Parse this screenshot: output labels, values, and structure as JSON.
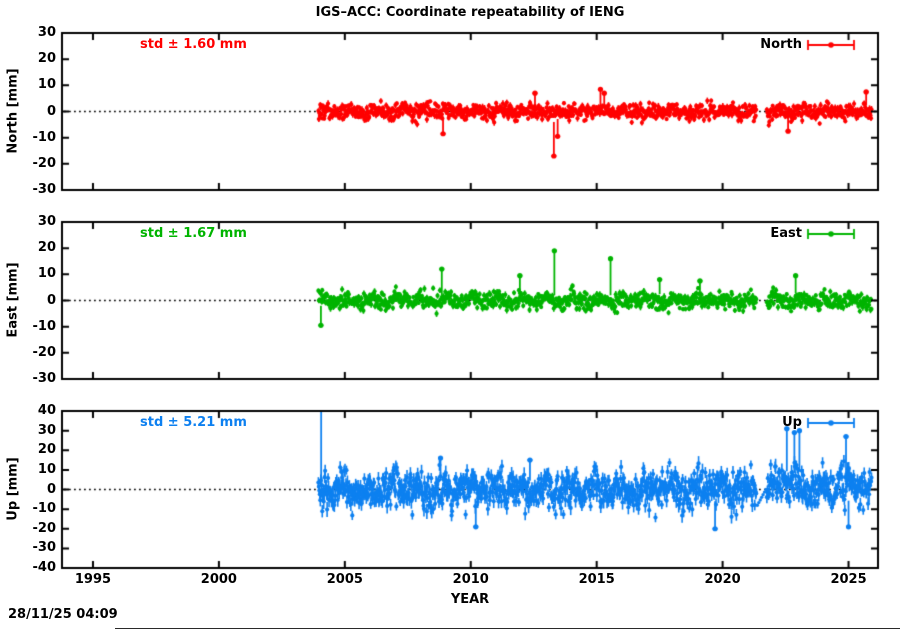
{
  "page": {
    "timestamp": "28/11/25 04:09",
    "background": "#ffffff",
    "axis_color": "#000000"
  },
  "chart_data": {
    "type": "scatter",
    "title": "IGS–ACC: Coordinate repeatability of IENG",
    "xlabel": "YEAR",
    "x_ticks": [
      1995,
      2000,
      2005,
      2010,
      2015,
      2020,
      2025
    ],
    "x_range": [
      1993.77,
      2026.17
    ],
    "data_start": 2003.95,
    "data_end": 2025.92,
    "data_gap": [
      2021.35,
      2021.75
    ],
    "sampling_per_year": 52,
    "grid": "zero-line-dotted",
    "legend_position": "top-right-inside",
    "panels": [
      {
        "name": "North",
        "ylabel": "North [mm]",
        "legend": "North",
        "std_label": "std ± 1.60 mm",
        "std_mm": 1.6,
        "color": "#ff0000",
        "ylim": [
          -30,
          30
        ],
        "y_ticks": [
          30,
          20,
          10,
          0,
          -10,
          -20,
          -30
        ],
        "noise_std": 1.5,
        "seasonal_amp": 0.6,
        "errorbar_mm": 1.0,
        "seed": 101,
        "bursts": [],
        "outliers": [
          {
            "x": 2008.9,
            "y": -8.5
          },
          {
            "x": 2012.55,
            "y": 7.0
          },
          {
            "x": 2013.3,
            "y": -17.0,
            "bar_from": -4.0
          },
          {
            "x": 2013.45,
            "y": -9.5
          },
          {
            "x": 2015.15,
            "y": 8.5
          },
          {
            "x": 2015.3,
            "y": 7.0
          },
          {
            "x": 2022.6,
            "y": -7.5
          },
          {
            "x": 2025.7,
            "y": 7.5
          }
        ]
      },
      {
        "name": "East",
        "ylabel": "East [mm]",
        "legend": "East",
        "std_label": "std ± 1.67 mm",
        "std_mm": 1.67,
        "color": "#00b400",
        "ylim": [
          -30,
          30
        ],
        "y_ticks": [
          30,
          20,
          10,
          0,
          -10,
          -20,
          -30
        ],
        "noise_std": 1.6,
        "seasonal_amp": 0.7,
        "errorbar_mm": 1.0,
        "seed": 202,
        "bursts": [],
        "outliers": [
          {
            "x": 2004.05,
            "y": -9.5,
            "bar_from": -2.0
          },
          {
            "x": 2008.85,
            "y": 12.0,
            "bar_from": 2.0
          },
          {
            "x": 2011.95,
            "y": 9.5,
            "bar_from": 2.0
          },
          {
            "x": 2013.32,
            "y": 19.0,
            "bar_from": 2.0
          },
          {
            "x": 2015.55,
            "y": 16.0,
            "bar_from": 2.0
          },
          {
            "x": 2017.5,
            "y": 8.0
          },
          {
            "x": 2019.1,
            "y": 7.5
          },
          {
            "x": 2022.9,
            "y": 9.5
          }
        ]
      },
      {
        "name": "Up",
        "ylabel": "Up [mm]",
        "legend": "Up",
        "std_label": "std ± 5.21 mm",
        "std_mm": 5.21,
        "color": "#0d80f0",
        "ylim": [
          -40,
          40
        ],
        "y_ticks": [
          40,
          30,
          20,
          10,
          0,
          -10,
          -20,
          -30,
          -40
        ],
        "noise_std": 4.6,
        "seasonal_amp": 2.4,
        "errorbar_mm": 3.0,
        "seed": 303,
        "bursts": [
          {
            "from": 2021.9,
            "to": 2023.35,
            "amp": 6.5
          },
          {
            "from": 2024.5,
            "to": 2025.4,
            "amp": 5.5
          }
        ],
        "gap_ramp": {
          "from": 2021.38,
          "to": 2021.72,
          "y_from": -8,
          "y_to": 0
        },
        "outliers": [
          {
            "x": 2004.06,
            "y": 44.0,
            "bar_from": 5.0
          },
          {
            "x": 2008.8,
            "y": 16.0
          },
          {
            "x": 2010.2,
            "y": -19.0
          },
          {
            "x": 2012.35,
            "y": 15.0
          },
          {
            "x": 2019.7,
            "y": -20.0
          },
          {
            "x": 2022.55,
            "y": 31.0
          },
          {
            "x": 2022.85,
            "y": 29.0
          },
          {
            "x": 2023.05,
            "y": 30.0
          },
          {
            "x": 2024.9,
            "y": 27.0
          },
          {
            "x": 2025.0,
            "y": -19.0
          }
        ]
      }
    ]
  }
}
